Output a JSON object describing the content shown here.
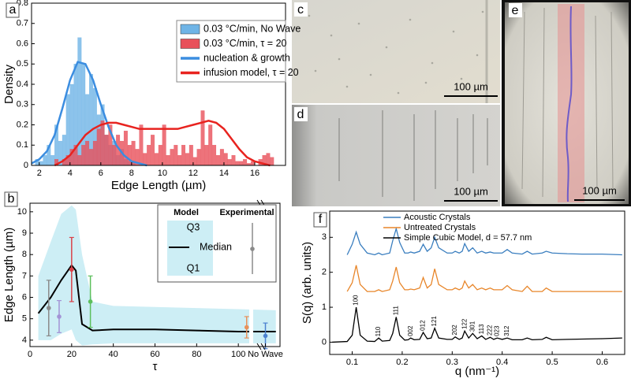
{
  "chart_data": [
    {
      "type": "histogram",
      "label": "a",
      "xlabel": "Edge Length (µm)",
      "ylabel": "Density",
      "bins": [
        1.5,
        1.75,
        2,
        2.25,
        2.5,
        2.75,
        3,
        3.25,
        3.5,
        3.75,
        4,
        4.25,
        4.5,
        4.75,
        5,
        5.25,
        5.5,
        5.75,
        6,
        6.25,
        6.5,
        6.75,
        7,
        7.25,
        7.5,
        7.75,
        8,
        8.25,
        8.5,
        8.75,
        9,
        9.25,
        9.5,
        9.75,
        10,
        10.25,
        10.5,
        10.75,
        11,
        11.25,
        11.5,
        11.75,
        12,
        12.25,
        12.5,
        12.75,
        13,
        13.25,
        13.5,
        13.75,
        14,
        14.25,
        14.5,
        14.75,
        15,
        15.25,
        15.5,
        15.75,
        16,
        16.25,
        16.5,
        16.75,
        17,
        17.25
      ],
      "series": [
        {
          "name": "0.03 °C/min, No Wave",
          "color": "#6fb4e6",
          "values": [
            0,
            0.03,
            0.02,
            0.05,
            0.1,
            0.05,
            0.2,
            0.12,
            0.15,
            0.35,
            0.4,
            0.5,
            0.63,
            0.5,
            0.35,
            0.45,
            0.38,
            0.25,
            0.3,
            0.15,
            0.1,
            0.12,
            0.05,
            0.08,
            0.03,
            0.02,
            0.02,
            0,
            0,
            0,
            0,
            0,
            0,
            0,
            0,
            0,
            0,
            0,
            0,
            0,
            0,
            0,
            0,
            0,
            0,
            0,
            0,
            0,
            0,
            0,
            0,
            0,
            0,
            0,
            0,
            0,
            0,
            0,
            0,
            0,
            0,
            0,
            0
          ]
        },
        {
          "name": "0.03 °C/min, τ = 20",
          "color": "#e8505a",
          "values": [
            0,
            0,
            0,
            0,
            0,
            0,
            0.03,
            0,
            0.03,
            0.05,
            0.08,
            0.1,
            0.05,
            0.1,
            0.12,
            0.08,
            0.12,
            0.18,
            0.22,
            0.15,
            0.2,
            0.1,
            0.15,
            0.12,
            0.17,
            0.1,
            0.12,
            0.08,
            0.2,
            0.06,
            0.1,
            0.15,
            0.06,
            0.1,
            0.2,
            0.05,
            0.08,
            0.1,
            0.05,
            0.1,
            0.06,
            0.1,
            0.04,
            0.08,
            0.27,
            0.1,
            0.2,
            0.1,
            0.05,
            0.08,
            0.06,
            0.03,
            0.05,
            0.02,
            0.02,
            0.03,
            0.01,
            0.02,
            0,
            0.03,
            0.05,
            0.06,
            0.04
          ]
        }
      ],
      "lines": {
        "x": [
          1.5,
          2,
          2.5,
          3,
          3.5,
          4,
          4.5,
          5,
          5.5,
          6,
          6.5,
          7,
          7.5,
          8,
          8.5,
          9,
          9.5,
          10,
          10.5,
          11,
          11.5,
          12,
          12.5,
          13,
          13.5,
          14,
          14.5,
          15,
          15.5,
          16,
          16.5,
          17
        ],
        "series": [
          {
            "name": "nucleation & growth",
            "color": "#3b8de0",
            "values": [
              0.01,
              0.03,
              0.07,
              0.15,
              0.28,
              0.42,
              0.51,
              0.5,
              0.42,
              0.3,
              0.19,
              0.1,
              0.05,
              0.02,
              0.01,
              0,
              null,
              null,
              null,
              null,
              null,
              null,
              null,
              null,
              null,
              null,
              null,
              null,
              null,
              null,
              null,
              null
            ]
          },
          {
            "name": "infusion model, τ = 20",
            "color": "#e8231f",
            "values": [
              null,
              null,
              null,
              0,
              0.02,
              0.05,
              0.1,
              0.15,
              0.18,
              0.2,
              0.21,
              0.21,
              0.2,
              0.19,
              0.18,
              0.18,
              0.18,
              0.18,
              0.18,
              0.18,
              0.19,
              0.2,
              0.21,
              0.22,
              0.21,
              0.18,
              0.13,
              0.08,
              0.04,
              0.02,
              0.01,
              0
            ]
          }
        ]
      },
      "xlim": [
        1.5,
        18
      ],
      "xticks": [
        2,
        4,
        6,
        8,
        10,
        12,
        14,
        16
      ],
      "ylim": [
        0,
        0.8
      ],
      "yticks": [
        0,
        0.1,
        0.2,
        0.3,
        0.4,
        0.5,
        0.6,
        0.7,
        0.8
      ]
    },
    {
      "type": "band",
      "label": "b",
      "xlabel": "τ",
      "ylabel": "Edge Length (µm)",
      "x": [
        4,
        10,
        15,
        20,
        22,
        25,
        30,
        40,
        60,
        80,
        100,
        118
      ],
      "series": [
        {
          "name": "Median",
          "color": "#000000",
          "values": [
            5.25,
            6.0,
            6.8,
            7.5,
            7.25,
            4.75,
            4.45,
            4.5,
            4.5,
            4.45,
            4.4,
            4.4
          ]
        }
      ],
      "band": {
        "color": "#cdeef5",
        "upper": {
          "name": "Q3",
          "values": [
            7.0,
            8.6,
            9.9,
            10.3,
            10.1,
            8.0,
            5.8,
            5.6,
            5.55,
            5.5,
            5.45,
            5.4
          ]
        },
        "lower": {
          "name": "Q1",
          "values": [
            4.0,
            4.0,
            4.3,
            4.5,
            4.0,
            3.75,
            3.8,
            3.85,
            3.85,
            3.85,
            3.85,
            3.85
          ]
        }
      },
      "points": {
        "name": "Experimental",
        "x": [
          9,
          14,
          20,
          29,
          104,
          113
        ],
        "values": [
          5.5,
          5.1,
          7.3,
          5.8,
          4.6,
          4.2
        ],
        "errors": [
          1.3,
          0.75,
          1.5,
          1.2,
          0.5,
          0.6
        ],
        "colors": [
          "#8a8a8a",
          "#a393d6",
          "#d9434a",
          "#5cbf5c",
          "#e8915a",
          "#4c82d0"
        ]
      },
      "legend_title": "Model",
      "xlim": [
        0,
        120
      ],
      "xticks": [
        0,
        20,
        40,
        60,
        80,
        100,
        {
          "value": 113,
          "label": "No Wave"
        }
      ],
      "ylim": [
        3.7,
        10.4
      ],
      "yticks": [
        4,
        5,
        6,
        7,
        8,
        9,
        10
      ]
    },
    {
      "type": "line",
      "label": "f",
      "xlabel": "q (nm⁻¹)",
      "ylabel": "S(q) (arb. units)",
      "x": [
        0.06,
        0.09,
        0.1,
        0.108,
        0.116,
        0.13,
        0.145,
        0.153,
        0.16,
        0.175,
        0.181,
        0.188,
        0.195,
        0.205,
        0.212,
        0.217,
        0.224,
        0.235,
        0.242,
        0.25,
        0.258,
        0.265,
        0.273,
        0.29,
        0.3,
        0.306,
        0.314,
        0.32,
        0.325,
        0.333,
        0.341,
        0.35,
        0.359,
        0.367,
        0.376,
        0.383,
        0.39,
        0.4,
        0.41,
        0.42,
        0.44,
        0.45,
        0.46,
        0.48,
        0.488,
        0.5,
        0.53,
        0.56,
        0.6,
        0.64
      ],
      "series": [
        {
          "name": "Acoustic Crystals",
          "color": "#3a7ebf",
          "values": [
            null,
            2.5,
            2.8,
            3.15,
            2.8,
            2.55,
            2.5,
            2.55,
            2.5,
            2.55,
            2.9,
            3.25,
            2.85,
            2.55,
            2.55,
            2.58,
            2.55,
            2.6,
            2.8,
            2.6,
            2.7,
            3.0,
            2.7,
            2.55,
            2.55,
            2.6,
            2.55,
            2.6,
            2.82,
            2.6,
            2.7,
            2.55,
            2.6,
            2.55,
            2.58,
            2.55,
            2.55,
            2.55,
            2.65,
            2.55,
            2.52,
            2.6,
            2.52,
            2.55,
            2.6,
            2.55,
            2.53,
            2.52,
            2.52,
            2.5
          ]
        },
        {
          "name": "Untreated Crystals",
          "color": "#e8862a",
          "values": [
            null,
            1.45,
            1.7,
            2.2,
            1.65,
            1.45,
            1.45,
            1.5,
            1.45,
            1.5,
            1.75,
            2.15,
            1.7,
            1.5,
            1.5,
            1.52,
            1.5,
            1.55,
            1.85,
            1.55,
            1.65,
            2.1,
            1.65,
            1.5,
            1.5,
            1.55,
            1.5,
            1.55,
            1.75,
            1.55,
            1.65,
            1.5,
            1.55,
            1.5,
            1.55,
            1.5,
            1.5,
            1.5,
            1.62,
            1.5,
            1.45,
            1.6,
            1.45,
            1.45,
            1.55,
            1.45,
            1.45,
            1.45,
            1.45,
            1.45
          ]
        },
        {
          "name": "Simple Cubic Model, d = 57.7 nm",
          "color": "#000000",
          "values": [
            0,
            0.02,
            0.2,
            1.0,
            0.2,
            0.03,
            0.02,
            0.12,
            0.03,
            0.05,
            0.25,
            0.72,
            0.2,
            0.06,
            0.07,
            0.12,
            0.07,
            0.08,
            0.28,
            0.1,
            0.12,
            0.4,
            0.12,
            0.08,
            0.08,
            0.15,
            0.08,
            0.12,
            0.32,
            0.12,
            0.25,
            0.1,
            0.18,
            0.08,
            0.14,
            0.08,
            0.12,
            0.08,
            0.12,
            0.07,
            0.07,
            0.12,
            0.07,
            0.08,
            0.14,
            0.07,
            0.08,
            0.09,
            0.1,
            0.12
          ]
        }
      ],
      "annotations": [
        {
          "text": "100",
          "x": 0.108,
          "y": 1.05
        },
        {
          "text": "110",
          "x": 0.153,
          "y": 0.16
        },
        {
          "text": "111",
          "x": 0.188,
          "y": 0.77
        },
        {
          "text": "002",
          "x": 0.217,
          "y": 0.17
        },
        {
          "text": "012",
          "x": 0.242,
          "y": 0.33
        },
        {
          "text": "121",
          "x": 0.265,
          "y": 0.45
        },
        {
          "text": "202",
          "x": 0.306,
          "y": 0.2
        },
        {
          "text": "122",
          "x": 0.325,
          "y": 0.37
        },
        {
          "text": "301",
          "x": 0.341,
          "y": 0.3
        },
        {
          "text": "113",
          "x": 0.359,
          "y": 0.23
        },
        {
          "text": "222",
          "x": 0.376,
          "y": 0.19
        },
        {
          "text": "023",
          "x": 0.39,
          "y": 0.17
        },
        {
          "text": "312",
          "x": 0.41,
          "y": 0.17
        }
      ],
      "xlim": [
        0.055,
        0.645
      ],
      "xticks": [
        0.1,
        0.2,
        0.3,
        0.4,
        0.5,
        0.6
      ],
      "ylim": [
        -0.35,
        3.75
      ],
      "yticks": [
        0,
        1,
        2,
        3
      ]
    }
  ],
  "images": [
    {
      "label": "c",
      "scale_bar": "100 µm"
    },
    {
      "label": "d",
      "scale_bar": "100 µm"
    },
    {
      "label": "e",
      "scale_bar": "100 µm"
    }
  ]
}
